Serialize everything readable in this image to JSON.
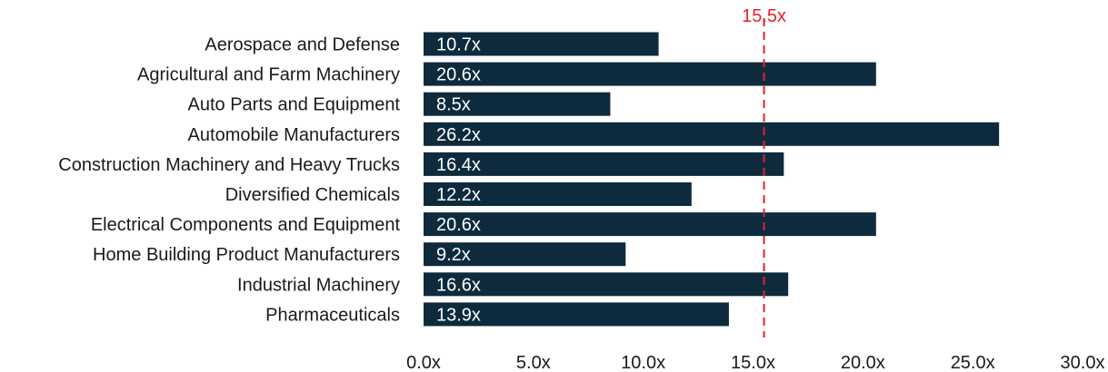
{
  "chart_data": {
    "type": "bar",
    "orientation": "horizontal",
    "categories": [
      "Aerospace and Defense",
      "Agricultural and Farm Machinery",
      "Auto Parts and Equipment",
      "Automobile Manufacturers",
      "Construction Machinery and Heavy Trucks",
      "Diversified Chemicals",
      "Electrical Components and Equipment",
      "Home Building Product Manufacturers",
      "Industrial Machinery",
      "Pharmaceuticals"
    ],
    "values": [
      10.7,
      20.6,
      8.5,
      26.2,
      16.4,
      12.2,
      20.6,
      9.2,
      16.6,
      13.9
    ],
    "value_labels": [
      "10.7x",
      "20.6x",
      "8.5x",
      "26.2x",
      "16.4x",
      "12.2x",
      "20.6x",
      "9.2x",
      "16.6x",
      "13.9x"
    ],
    "xlim": [
      0,
      30
    ],
    "xticks": [
      0,
      5,
      10,
      15,
      20,
      25,
      30
    ],
    "xtick_labels": [
      "0.0x",
      "5.0x",
      "10.0x",
      "15.0x",
      "20.0x",
      "25.0x",
      "30.0x"
    ],
    "reference_line": {
      "value": 15.5,
      "label": "15.5x",
      "style": "dashed",
      "color": "#e8202a"
    },
    "bar_color": "#0e2b3d",
    "grid": false,
    "legend": "none"
  }
}
